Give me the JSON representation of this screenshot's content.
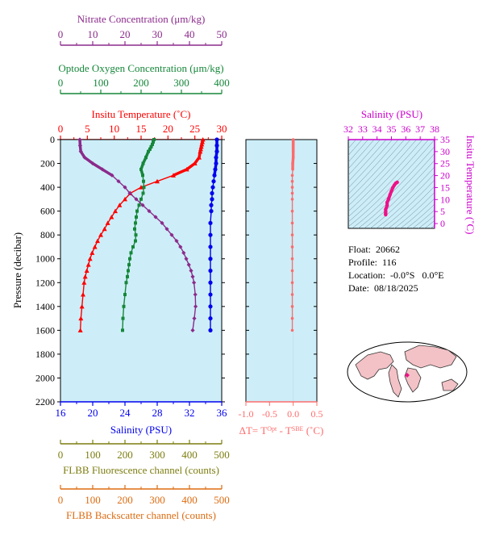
{
  "colors": {
    "nitrate": "#8b2a8b",
    "oxygen": "#16873a",
    "temperature": "#ff0000",
    "salinity": "#0000ee",
    "delta_t": "#ff6b6b",
    "fluorescence": "#7d7d10",
    "backscatter": "#dd6b10",
    "ts_axis": "#cc00cc",
    "ts_curve": "#ee1188",
    "panel_fill": "#cdeef8",
    "land": "#f3c2c6"
  },
  "info": {
    "float": "Float:  20662",
    "profile": "Profile:  116",
    "location": "Location:  -0.0°S   0.0°E",
    "date": "Date:  08/18/2025"
  },
  "chart_data": [
    {
      "type": "line",
      "ylabel": "Pressure (decibar)",
      "ylim": [
        2200,
        0
      ],
      "yticks": [
        "0",
        "200",
        "400",
        "600",
        "800",
        "1000",
        "1200",
        "1400",
        "1600",
        "1800",
        "2000",
        "2200"
      ],
      "axes": {
        "nitrate": {
          "label": "Nitrate Concentration (μm/kg)",
          "range": [
            0,
            50
          ],
          "ticks": [
            "0",
            "10",
            "20",
            "30",
            "40",
            "50"
          ]
        },
        "oxygen": {
          "label": "Optode Oxygen Concentration (μm/kg)",
          "range": [
            0,
            400
          ],
          "ticks": [
            "0",
            "100",
            "200",
            "300",
            "400"
          ]
        },
        "temperature": {
          "label": "Insitu Temperature (˚C)",
          "range": [
            0,
            30
          ],
          "ticks": [
            "0",
            "5",
            "10",
            "15",
            "20",
            "25",
            "30"
          ]
        },
        "salinity": {
          "label": "Salinity (PSU)",
          "range": [
            16,
            36
          ],
          "ticks": [
            "16",
            "20",
            "24",
            "28",
            "32",
            "36"
          ]
        },
        "fluorescence": {
          "label": "FLBB Fluorescence channel (counts)",
          "range": [
            0,
            500
          ],
          "ticks": [
            "0",
            "100",
            "200",
            "300",
            "400",
            "500"
          ]
        },
        "backscatter": {
          "label": "FLBB Backscatter channel (counts)",
          "range": [
            0,
            500
          ],
          "ticks": [
            "0",
            "100",
            "200",
            "300",
            "400",
            "500"
          ]
        }
      },
      "series": [
        {
          "name": "Insitu Temperature",
          "axis": "temperature",
          "marker": "triangle",
          "points": [
            [
              26.5,
              0
            ],
            [
              26.4,
              20
            ],
            [
              26.3,
              40
            ],
            [
              26.2,
              60
            ],
            [
              26.1,
              80
            ],
            [
              26.0,
              100
            ],
            [
              25.8,
              150
            ],
            [
              25.0,
              200
            ],
            [
              23.5,
              250
            ],
            [
              21.0,
              300
            ],
            [
              18.0,
              350
            ],
            [
              15.0,
              400
            ],
            [
              13.0,
              450
            ],
            [
              12.0,
              500
            ],
            [
              11.0,
              550
            ],
            [
              10.2,
              600
            ],
            [
              9.5,
              650
            ],
            [
              8.8,
              700
            ],
            [
              8.2,
              750
            ],
            [
              7.5,
              800
            ],
            [
              6.9,
              850
            ],
            [
              6.4,
              900
            ],
            [
              5.9,
              950
            ],
            [
              5.5,
              1000
            ],
            [
              5.2,
              1050
            ],
            [
              4.9,
              1100
            ],
            [
              4.6,
              1150
            ],
            [
              4.4,
              1200
            ],
            [
              4.2,
              1300
            ],
            [
              4.0,
              1400
            ],
            [
              3.8,
              1500
            ],
            [
              3.7,
              1600
            ]
          ]
        },
        {
          "name": "Salinity",
          "axis": "salinity",
          "marker": "circle",
          "points": [
            [
              35.4,
              0
            ],
            [
              35.4,
              50
            ],
            [
              35.4,
              100
            ],
            [
              35.3,
              150
            ],
            [
              35.3,
              200
            ],
            [
              35.2,
              250
            ],
            [
              35.1,
              300
            ],
            [
              35.0,
              350
            ],
            [
              34.9,
              400
            ],
            [
              34.8,
              450
            ],
            [
              34.8,
              500
            ],
            [
              34.7,
              550
            ],
            [
              34.7,
              600
            ],
            [
              34.6,
              700
            ],
            [
              34.6,
              800
            ],
            [
              34.6,
              900
            ],
            [
              34.6,
              1000
            ],
            [
              34.6,
              1100
            ],
            [
              34.6,
              1200
            ],
            [
              34.6,
              1300
            ],
            [
              34.6,
              1400
            ],
            [
              34.6,
              1500
            ],
            [
              34.6,
              1600
            ]
          ]
        },
        {
          "name": "Optode Oxygen Concentration",
          "axis": "oxygen",
          "marker": "square",
          "points": [
            [
              232,
              0
            ],
            [
              230,
              20
            ],
            [
              228,
              40
            ],
            [
              225,
              60
            ],
            [
              222,
              80
            ],
            [
              218,
              100
            ],
            [
              212,
              150
            ],
            [
              205,
              200
            ],
            [
              200,
              250
            ],
            [
              204,
              300
            ],
            [
              206,
              350
            ],
            [
              207,
              400
            ],
            [
              205,
              450
            ],
            [
              200,
              500
            ],
            [
              195,
              550
            ],
            [
              190,
              600
            ],
            [
              188,
              650
            ],
            [
              186,
              700
            ],
            [
              184,
              750
            ],
            [
              187,
              800
            ],
            [
              186,
              850
            ],
            [
              180,
              900
            ],
            [
              175,
              950
            ],
            [
              172,
              1000
            ],
            [
              170,
              1050
            ],
            [
              168,
              1100
            ],
            [
              166,
              1150
            ],
            [
              163,
              1200
            ],
            [
              160,
              1300
            ],
            [
              157,
              1400
            ],
            [
              155,
              1500
            ],
            [
              154,
              1600
            ]
          ]
        },
        {
          "name": "Nitrate Concentration",
          "axis": "nitrate",
          "marker": "diamond",
          "points": [
            [
              6.0,
              0
            ],
            [
              6.1,
              50
            ],
            [
              6.3,
              100
            ],
            [
              7.5,
              150
            ],
            [
              10.0,
              200
            ],
            [
              13.0,
              250
            ],
            [
              16.0,
              300
            ],
            [
              18.0,
              350
            ],
            [
              20.0,
              400
            ],
            [
              21.5,
              450
            ],
            [
              23.5,
              500
            ],
            [
              25.5,
              550
            ],
            [
              27.5,
              600
            ],
            [
              29.5,
              650
            ],
            [
              31.5,
              700
            ],
            [
              33.0,
              750
            ],
            [
              34.5,
              800
            ],
            [
              36.0,
              850
            ],
            [
              37.2,
              900
            ],
            [
              38.2,
              950
            ],
            [
              39.0,
              1000
            ],
            [
              39.8,
              1050
            ],
            [
              40.5,
              1100
            ],
            [
              41.0,
              1150
            ],
            [
              41.4,
              1200
            ],
            [
              41.8,
              1300
            ],
            [
              41.9,
              1400
            ],
            [
              41.5,
              1500
            ],
            [
              41.0,
              1600
            ]
          ]
        }
      ]
    },
    {
      "type": "scatter",
      "xlabel": "ΔT= T^Opt - T^SBE (˚C)",
      "xlim": [
        -1.0,
        0.5
      ],
      "xticks": [
        "-1.0",
        "-0.5",
        "0.0",
        "0.5"
      ],
      "ylim": [
        2200,
        0
      ],
      "series": [
        {
          "name": "ΔT",
          "points": [
            [
              0.0,
              0
            ],
            [
              0.0,
              20
            ],
            [
              0.0,
              40
            ],
            [
              0.0,
              60
            ],
            [
              0.0,
              80
            ],
            [
              0.0,
              100
            ],
            [
              0.0,
              150
            ],
            [
              -0.01,
              200
            ],
            [
              -0.01,
              250
            ],
            [
              -0.02,
              300
            ],
            [
              -0.02,
              350
            ],
            [
              -0.02,
              400
            ],
            [
              -0.02,
              450
            ],
            [
              -0.02,
              500
            ],
            [
              -0.02,
              600
            ],
            [
              -0.02,
              700
            ],
            [
              -0.02,
              800
            ],
            [
              -0.02,
              900
            ],
            [
              -0.02,
              1000
            ],
            [
              -0.02,
              1100
            ],
            [
              -0.02,
              1200
            ],
            [
              -0.02,
              1300
            ],
            [
              -0.02,
              1400
            ],
            [
              -0.02,
              1500
            ],
            [
              -0.02,
              1600
            ]
          ]
        }
      ]
    },
    {
      "type": "scatter",
      "title": "Salinity (PSU)",
      "ylabel": "Insitu Temperature (˚C)",
      "xlim": [
        32,
        38
      ],
      "ylim": [
        -2,
        35
      ],
      "xticks": [
        "32",
        "33",
        "34",
        "35",
        "36",
        "37",
        "38"
      ],
      "yticks": [
        "0",
        "5",
        "10",
        "15",
        "20",
        "25",
        "30",
        "35"
      ],
      "series": [
        {
          "name": "T-S",
          "points": [
            [
              34.6,
              3.7
            ],
            [
              34.6,
              4.2
            ],
            [
              34.6,
              4.9
            ],
            [
              34.6,
              5.9
            ],
            [
              34.7,
              7.5
            ],
            [
              34.7,
              8.8
            ],
            [
              34.8,
              10.2
            ],
            [
              34.9,
              12.0
            ],
            [
              35.0,
              13.5
            ],
            [
              35.1,
              15.0
            ],
            [
              35.2,
              16.0
            ],
            [
              35.3,
              16.8
            ],
            [
              35.4,
              17.2
            ]
          ]
        }
      ]
    }
  ]
}
